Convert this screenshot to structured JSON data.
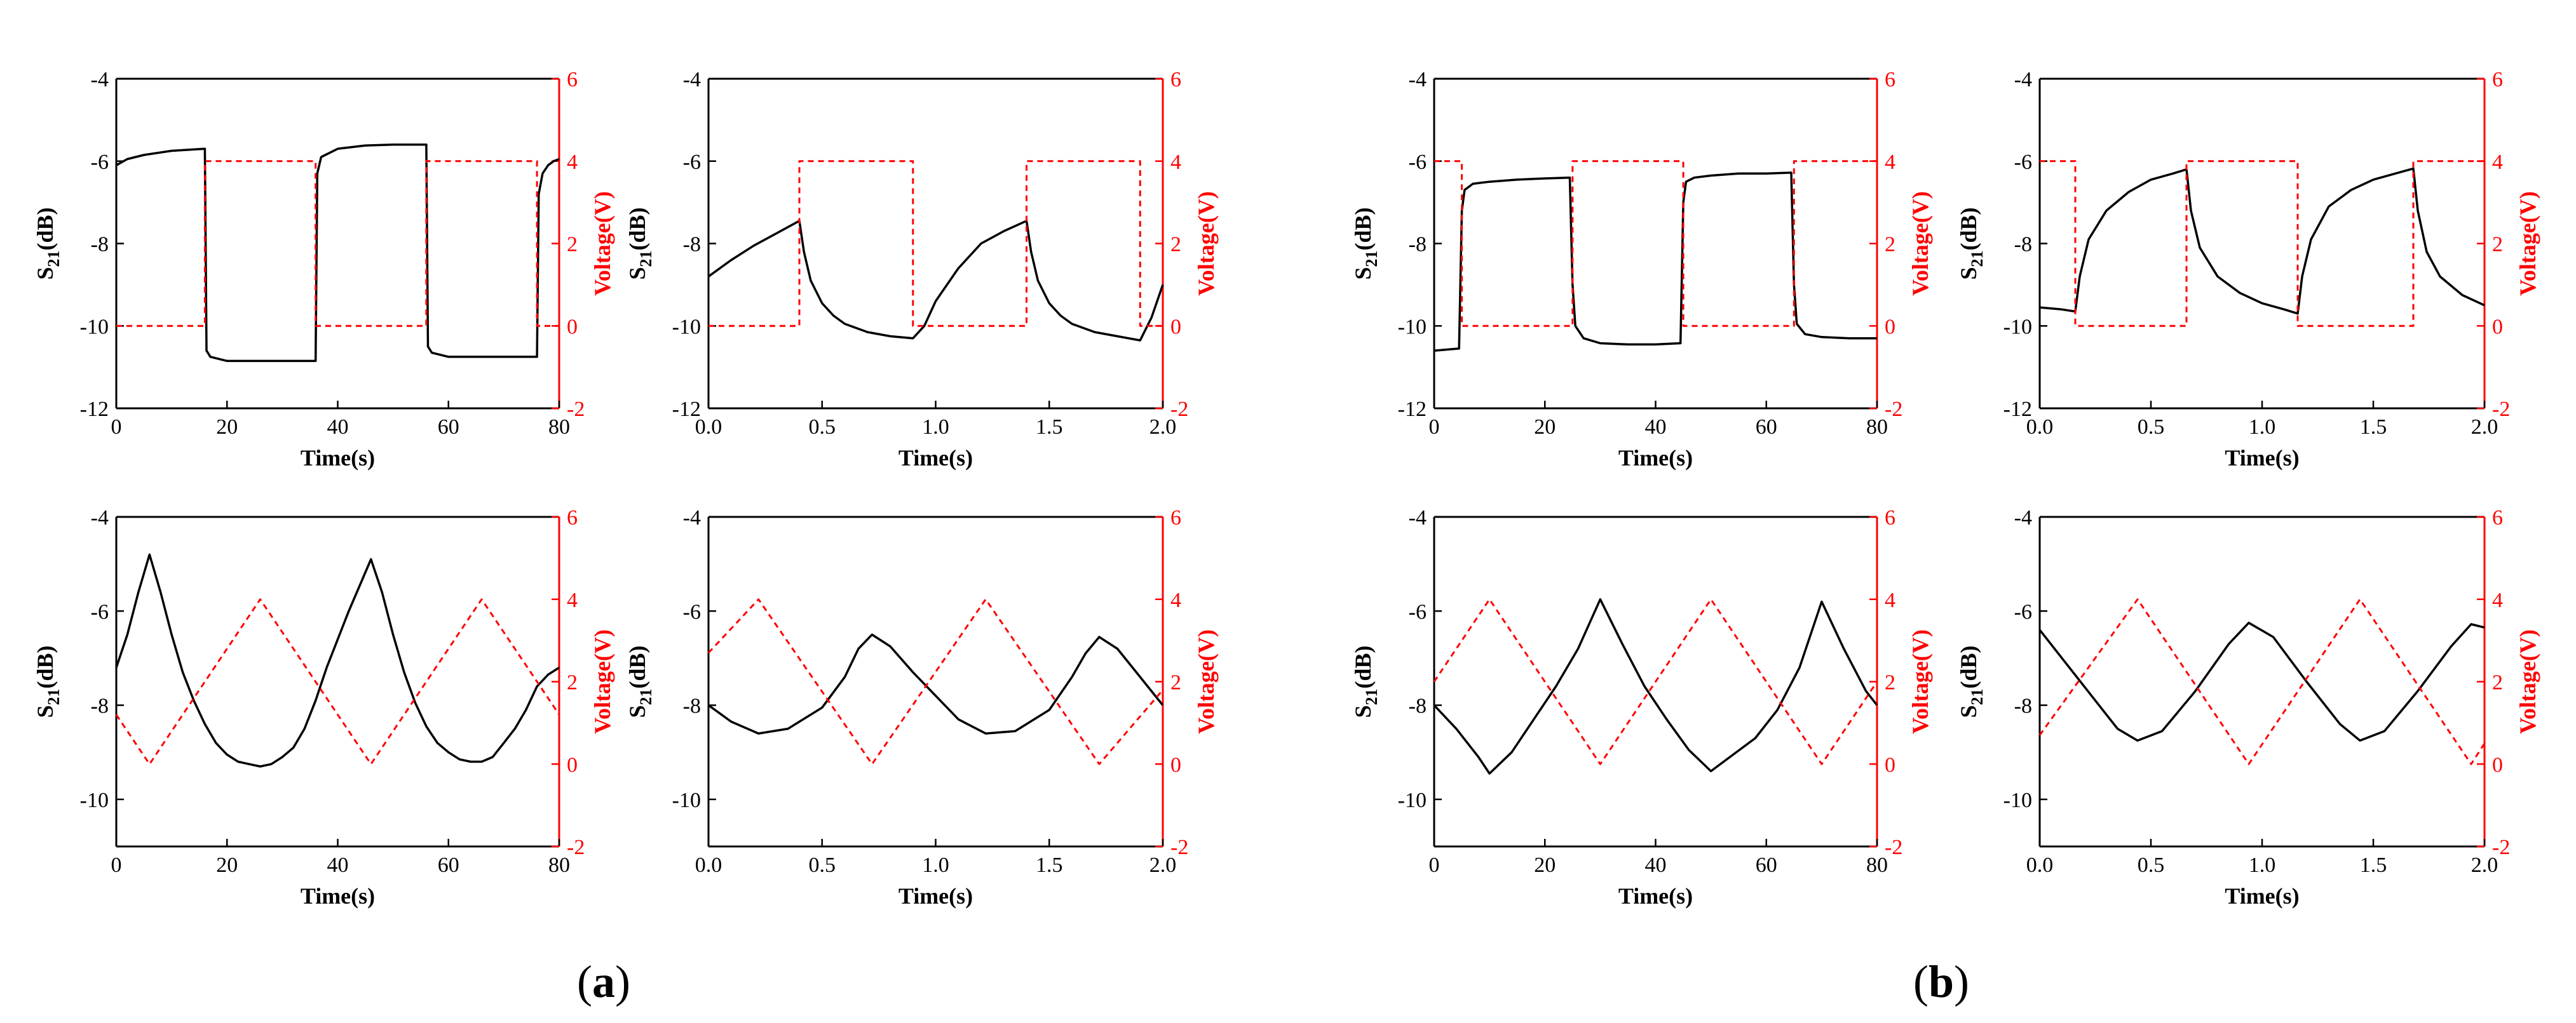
{
  "colors": {
    "s21": "#000000",
    "voltage": "#ff0000",
    "axis": "#000000"
  },
  "panel_labels": [
    {
      "open": "(",
      "letter": "a",
      "close": ")"
    },
    {
      "open": "(",
      "letter": "b",
      "close": ")"
    }
  ],
  "chart_data": [
    {
      "type": "line",
      "group": "a",
      "row": 1,
      "col": 1,
      "xlabel": "Time(s)",
      "ylabel_main": "S",
      "ylabel_sub": "21",
      "ylabel_unit": "(dB)",
      "y2label": "Voltage(V)",
      "xlim": [
        0,
        80
      ],
      "ylim": [
        -12,
        -4
      ],
      "y2lim": [
        -2,
        6
      ],
      "xticks": [
        0,
        20,
        40,
        60,
        80
      ],
      "xtick_labels": [
        "0",
        "20",
        "40",
        "60",
        "80"
      ],
      "yticks": [
        -12,
        -10,
        -8,
        -6,
        -4
      ],
      "ytick_labels": [
        "-12",
        "-10",
        "-8",
        "-6",
        "-4"
      ],
      "y2ticks": [
        -2,
        0,
        2,
        4,
        6
      ],
      "y2tick_labels": [
        "-2",
        "0",
        "2",
        "4",
        "6"
      ],
      "series": [
        {
          "name": "S21",
          "axis": "left",
          "style": "solid",
          "x": [
            0,
            2,
            5,
            10,
            16,
            16.3,
            17,
            20,
            36,
            36.3,
            37,
            40,
            45,
            50,
            56,
            56.3,
            57,
            60,
            76,
            76.3,
            77,
            78,
            79,
            80
          ],
          "y": [
            -6.1,
            -5.95,
            -5.85,
            -5.75,
            -5.7,
            -10.6,
            -10.75,
            -10.85,
            -10.85,
            -6.3,
            -5.9,
            -5.7,
            -5.62,
            -5.6,
            -5.6,
            -10.5,
            -10.65,
            -10.75,
            -10.75,
            -6.8,
            -6.3,
            -6.1,
            -6.0,
            -5.95
          ]
        },
        {
          "name": "Voltage",
          "axis": "right",
          "style": "dashed",
          "x": [
            0,
            16,
            16,
            36,
            36,
            56,
            56,
            76,
            76,
            80
          ],
          "y": [
            0,
            0,
            4,
            4,
            0,
            0,
            4,
            4,
            0,
            0
          ]
        }
      ]
    },
    {
      "type": "line",
      "group": "a",
      "row": 1,
      "col": 2,
      "xlabel": "Time(s)",
      "ylabel_main": "S",
      "ylabel_sub": "21",
      "ylabel_unit": "(dB)",
      "y2label": "Voltage(V)",
      "xlim": [
        0,
        2
      ],
      "ylim": [
        -12,
        -4
      ],
      "y2lim": [
        -2,
        6
      ],
      "xticks": [
        0,
        0.5,
        1,
        1.5,
        2
      ],
      "xtick_labels": [
        "0.0",
        "0.5",
        "1.0",
        "1.5",
        "2.0"
      ],
      "yticks": [
        -12,
        -10,
        -8,
        -6,
        -4
      ],
      "ytick_labels": [
        "-12",
        "-10",
        "-8",
        "-6",
        "-4"
      ],
      "y2ticks": [
        -2,
        0,
        2,
        4,
        6
      ],
      "y2tick_labels": [
        "-2",
        "0",
        "2",
        "4",
        "6"
      ],
      "series": [
        {
          "name": "S21",
          "axis": "left",
          "style": "solid",
          "x": [
            0,
            0.05,
            0.1,
            0.2,
            0.3,
            0.4,
            0.42,
            0.45,
            0.5,
            0.55,
            0.6,
            0.7,
            0.8,
            0.9,
            0.95,
            1.0,
            1.1,
            1.2,
            1.3,
            1.4,
            1.42,
            1.45,
            1.5,
            1.55,
            1.6,
            1.7,
            1.8,
            1.9,
            1.95,
            2.0
          ],
          "y": [
            -8.8,
            -8.6,
            -8.4,
            -8.05,
            -7.75,
            -7.45,
            -8.2,
            -8.9,
            -9.45,
            -9.75,
            -9.95,
            -10.15,
            -10.25,
            -10.3,
            -10.0,
            -9.4,
            -8.6,
            -8.0,
            -7.7,
            -7.45,
            -8.2,
            -8.9,
            -9.45,
            -9.75,
            -9.95,
            -10.15,
            -10.25,
            -10.35,
            -9.8,
            -9.0
          ]
        },
        {
          "name": "Voltage",
          "axis": "right",
          "style": "dashed",
          "x": [
            0,
            0.4,
            0.4,
            0.9,
            0.9,
            1.4,
            1.4,
            1.9,
            1.9,
            2.0
          ],
          "y": [
            0,
            0,
            4,
            4,
            0,
            0,
            4,
            4,
            0,
            0
          ]
        }
      ]
    },
    {
      "type": "line",
      "group": "b",
      "row": 1,
      "col": 1,
      "xlabel": "Time(s)",
      "ylabel_main": "S",
      "ylabel_sub": "21",
      "ylabel_unit": "(dB)",
      "y2label": "Voltage(V)",
      "xlim": [
        0,
        80
      ],
      "ylim": [
        -12,
        -4
      ],
      "y2lim": [
        -2,
        6
      ],
      "xticks": [
        0,
        20,
        40,
        60,
        80
      ],
      "xtick_labels": [
        "0",
        "20",
        "40",
        "60",
        "80"
      ],
      "yticks": [
        -12,
        -10,
        -8,
        -6,
        -4
      ],
      "ytick_labels": [
        "-12",
        "-10",
        "-8",
        "-6",
        "-4"
      ],
      "y2ticks": [
        -2,
        0,
        2,
        4,
        6
      ],
      "y2tick_labels": [
        "-2",
        "0",
        "2",
        "4",
        "6"
      ],
      "series": [
        {
          "name": "S21",
          "axis": "left",
          "style": "solid",
          "x": [
            0,
            4.5,
            5,
            5.5,
            7,
            10,
            15,
            20,
            24.5,
            25,
            25.5,
            27,
            30,
            35,
            40,
            44.5,
            45,
            45.5,
            47,
            50,
            55,
            60,
            64.5,
            65,
            65.5,
            67,
            70,
            75,
            80
          ],
          "y": [
            -10.6,
            -10.55,
            -7.2,
            -6.7,
            -6.55,
            -6.5,
            -6.45,
            -6.42,
            -6.4,
            -9.0,
            -10.0,
            -10.3,
            -10.42,
            -10.45,
            -10.45,
            -10.42,
            -7.0,
            -6.5,
            -6.4,
            -6.35,
            -6.3,
            -6.3,
            -6.28,
            -9.0,
            -9.95,
            -10.2,
            -10.27,
            -10.3,
            -10.3
          ]
        },
        {
          "name": "Voltage",
          "axis": "right",
          "style": "dashed",
          "x": [
            0,
            5,
            5,
            25,
            25,
            45,
            45,
            65,
            65,
            80
          ],
          "y": [
            4,
            4,
            0,
            0,
            4,
            4,
            0,
            0,
            4,
            4
          ]
        }
      ]
    },
    {
      "type": "line",
      "group": "b",
      "row": 1,
      "col": 2,
      "xlabel": "Time(s)",
      "ylabel_main": "S",
      "ylabel_sub": "21",
      "ylabel_unit": "(dB)",
      "y2label": "Voltage(V)",
      "xlim": [
        0,
        2
      ],
      "ylim": [
        -12,
        -4
      ],
      "y2lim": [
        -2,
        6
      ],
      "xticks": [
        0,
        0.5,
        1,
        1.5,
        2
      ],
      "xtick_labels": [
        "0.0",
        "0.5",
        "1.0",
        "1.5",
        "2.0"
      ],
      "yticks": [
        -12,
        -10,
        -8,
        -6,
        -4
      ],
      "ytick_labels": [
        "-12",
        "-10",
        "-8",
        "-6",
        "-4"
      ],
      "y2ticks": [
        -2,
        0,
        2,
        4,
        6
      ],
      "y2tick_labels": [
        "-2",
        "0",
        "2",
        "4",
        "6"
      ],
      "series": [
        {
          "name": "S21",
          "axis": "left",
          "style": "solid",
          "x": [
            0,
            0.1,
            0.16,
            0.18,
            0.22,
            0.3,
            0.4,
            0.5,
            0.6,
            0.66,
            0.68,
            0.72,
            0.8,
            0.9,
            1.0,
            1.1,
            1.16,
            1.18,
            1.22,
            1.3,
            1.4,
            1.5,
            1.6,
            1.68,
            1.7,
            1.74,
            1.8,
            1.9,
            2.0
          ],
          "y": [
            -9.55,
            -9.6,
            -9.65,
            -8.8,
            -7.9,
            -7.2,
            -6.75,
            -6.45,
            -6.3,
            -6.2,
            -7.2,
            -8.1,
            -8.8,
            -9.2,
            -9.45,
            -9.6,
            -9.7,
            -8.8,
            -7.9,
            -7.1,
            -6.7,
            -6.45,
            -6.3,
            -6.18,
            -7.2,
            -8.2,
            -8.8,
            -9.25,
            -9.5
          ]
        },
        {
          "name": "Voltage",
          "axis": "right",
          "style": "dashed",
          "x": [
            0,
            0.16,
            0.16,
            0.66,
            0.66,
            1.16,
            1.16,
            1.68,
            1.68,
            2.0
          ],
          "y": [
            4,
            4,
            0,
            0,
            4,
            4,
            0,
            0,
            4,
            4
          ]
        }
      ]
    },
    {
      "type": "line",
      "group": "a",
      "row": 2,
      "col": 1,
      "xlabel": "Time(s)",
      "ylabel_main": "S",
      "ylabel_sub": "21",
      "ylabel_unit": "(dB)",
      "y2label": "Voltage(V)",
      "xlim": [
        0,
        80
      ],
      "ylim": [
        -11,
        -4
      ],
      "y2lim": [
        -2,
        6
      ],
      "xticks": [
        0,
        20,
        40,
        60,
        80
      ],
      "xtick_labels": [
        "0",
        "20",
        "40",
        "60",
        "80"
      ],
      "yticks": [
        -10,
        -8,
        -6,
        -4
      ],
      "ytick_labels": [
        "-10",
        "-8",
        "-6",
        "-4"
      ],
      "y2ticks": [
        -2,
        0,
        2,
        4,
        6
      ],
      "y2tick_labels": [
        "-2",
        "0",
        "2",
        "4",
        "6"
      ],
      "series": [
        {
          "name": "S21",
          "axis": "left",
          "style": "solid",
          "x": [
            0,
            2,
            4,
            6,
            8,
            10,
            12,
            14,
            16,
            18,
            20,
            22,
            24,
            26,
            28,
            30,
            32,
            34,
            36,
            38,
            40,
            42,
            44,
            46,
            48,
            50,
            52,
            54,
            56,
            58,
            60,
            62,
            64,
            66,
            68,
            70,
            72,
            74,
            76,
            78,
            80
          ],
          "y": [
            -7.2,
            -6.5,
            -5.6,
            -4.8,
            -5.6,
            -6.5,
            -7.3,
            -7.9,
            -8.4,
            -8.8,
            -9.05,
            -9.2,
            -9.25,
            -9.3,
            -9.25,
            -9.1,
            -8.9,
            -8.5,
            -7.9,
            -7.2,
            -6.6,
            -6.0,
            -5.45,
            -4.9,
            -5.6,
            -6.5,
            -7.3,
            -7.95,
            -8.45,
            -8.8,
            -9.0,
            -9.15,
            -9.2,
            -9.2,
            -9.1,
            -8.8,
            -8.5,
            -8.1,
            -7.6,
            -7.35,
            -7.2
          ]
        },
        {
          "name": "Voltage",
          "axis": "right",
          "style": "dashed",
          "x": [
            0,
            6,
            26,
            46,
            66,
            80
          ],
          "y": [
            1.2,
            0,
            4,
            0,
            4,
            1.2
          ]
        }
      ]
    },
    {
      "type": "line",
      "group": "a",
      "row": 2,
      "col": 2,
      "xlabel": "Time(s)",
      "ylabel_main": "S",
      "ylabel_sub": "21",
      "ylabel_unit": "(dB)",
      "y2label": "Voltage(V)",
      "xlim": [
        0,
        2
      ],
      "ylim": [
        -11,
        -4
      ],
      "y2lim": [
        -2,
        6
      ],
      "xticks": [
        0,
        0.5,
        1,
        1.5,
        2
      ],
      "xtick_labels": [
        "0.0",
        "0.5",
        "1.0",
        "1.5",
        "2.0"
      ],
      "yticks": [
        -10,
        -8,
        -6,
        -4
      ],
      "ytick_labels": [
        "-10",
        "-8",
        "-6",
        "-4"
      ],
      "y2ticks": [
        -2,
        0,
        2,
        4,
        6
      ],
      "y2tick_labels": [
        "-2",
        "0",
        "2",
        "4",
        "6"
      ],
      "series": [
        {
          "name": "S21",
          "axis": "left",
          "style": "solid",
          "x": [
            0,
            0.1,
            0.22,
            0.35,
            0.5,
            0.6,
            0.66,
            0.72,
            0.8,
            0.9,
            1.0,
            1.1,
            1.22,
            1.35,
            1.5,
            1.6,
            1.66,
            1.72,
            1.8,
            1.9,
            2.0
          ],
          "y": [
            -8.0,
            -8.35,
            -8.6,
            -8.5,
            -8.05,
            -7.4,
            -6.8,
            -6.5,
            -6.75,
            -7.3,
            -7.8,
            -8.3,
            -8.6,
            -8.55,
            -8.1,
            -7.4,
            -6.9,
            -6.55,
            -6.8,
            -7.4,
            -8.0
          ]
        },
        {
          "name": "Voltage",
          "axis": "right",
          "style": "dashed",
          "x": [
            0,
            0.22,
            0.72,
            1.22,
            1.72,
            2.0
          ],
          "y": [
            2.7,
            4,
            0,
            4,
            0,
            1.8
          ]
        }
      ]
    },
    {
      "type": "line",
      "group": "b",
      "row": 2,
      "col": 1,
      "xlabel": "Time(s)",
      "ylabel_main": "S",
      "ylabel_sub": "21",
      "ylabel_unit": "(dB)",
      "y2label": "Voltage(V)",
      "xlim": [
        0,
        80
      ],
      "ylim": [
        -11,
        -4
      ],
      "y2lim": [
        -2,
        6
      ],
      "xticks": [
        0,
        20,
        40,
        60,
        80
      ],
      "xtick_labels": [
        "0",
        "20",
        "40",
        "60",
        "80"
      ],
      "yticks": [
        -10,
        -8,
        -6,
        -4
      ],
      "ytick_labels": [
        "-10",
        "-8",
        "-6",
        "-4"
      ],
      "y2ticks": [
        -2,
        0,
        2,
        4,
        6
      ],
      "y2tick_labels": [
        "-2",
        "0",
        "2",
        "4",
        "6"
      ],
      "series": [
        {
          "name": "S21",
          "axis": "left",
          "style": "solid",
          "x": [
            0,
            4,
            8,
            10,
            14,
            18,
            22,
            26,
            30,
            34,
            38,
            42,
            46,
            50,
            54,
            58,
            62,
            66,
            70,
            74,
            78,
            80
          ],
          "y": [
            -8.0,
            -8.5,
            -9.1,
            -9.45,
            -9.0,
            -8.3,
            -7.6,
            -6.8,
            -5.75,
            -6.7,
            -7.6,
            -8.3,
            -8.95,
            -9.4,
            -9.05,
            -8.7,
            -8.1,
            -7.2,
            -5.8,
            -6.8,
            -7.7,
            -8.0
          ]
        },
        {
          "name": "Voltage",
          "axis": "right",
          "style": "dashed",
          "x": [
            0,
            10,
            30,
            50,
            70,
            80
          ],
          "y": [
            2,
            4,
            0,
            4,
            0,
            2
          ]
        }
      ]
    },
    {
      "type": "line",
      "group": "b",
      "row": 2,
      "col": 2,
      "xlabel": "Time(s)",
      "ylabel_main": "S",
      "ylabel_sub": "21",
      "ylabel_unit": "(dB)",
      "y2label": "Voltage(V)",
      "xlim": [
        0,
        2
      ],
      "ylim": [
        -11,
        -4
      ],
      "y2lim": [
        -2,
        6
      ],
      "xticks": [
        0,
        0.5,
        1,
        1.5,
        2
      ],
      "xtick_labels": [
        "0.0",
        "0.5",
        "1.0",
        "1.5",
        "2.0"
      ],
      "yticks": [
        -10,
        -8,
        -6,
        -4
      ],
      "ytick_labels": [
        "-10",
        "-8",
        "-6",
        "-4"
      ],
      "y2ticks": [
        -2,
        0,
        2,
        4,
        6
      ],
      "y2tick_labels": [
        "-2",
        "0",
        "2",
        "4",
        "6"
      ],
      "series": [
        {
          "name": "S21",
          "axis": "left",
          "style": "solid",
          "x": [
            0,
            0.1,
            0.25,
            0.35,
            0.44,
            0.55,
            0.7,
            0.85,
            0.94,
            1.05,
            1.2,
            1.35,
            1.44,
            1.55,
            1.7,
            1.85,
            1.94,
            2.0
          ],
          "y": [
            -6.4,
            -7.0,
            -7.9,
            -8.5,
            -8.75,
            -8.55,
            -7.7,
            -6.7,
            -6.25,
            -6.55,
            -7.5,
            -8.4,
            -8.75,
            -8.55,
            -7.7,
            -6.75,
            -6.28,
            -6.35
          ]
        },
        {
          "name": "Voltage",
          "axis": "right",
          "style": "dashed",
          "x": [
            0,
            0.44,
            0.94,
            1.44,
            1.94,
            2.0
          ],
          "y": [
            0.7,
            4,
            0,
            4,
            0,
            0.5
          ]
        }
      ]
    }
  ]
}
